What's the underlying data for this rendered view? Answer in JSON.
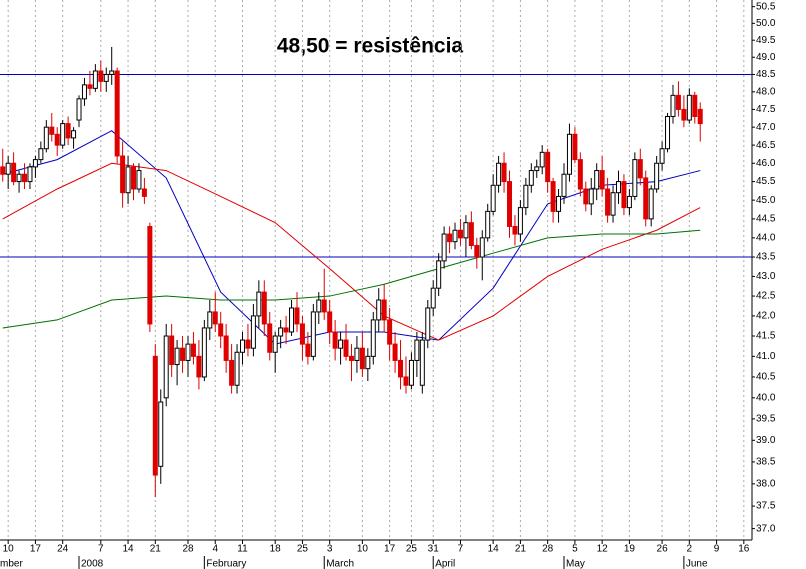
{
  "chart_data": {
    "type": "candlestick",
    "annotation": "48,50 = resistência",
    "annotation_color": "#e00000",
    "log_scale": true,
    "up_color": "#ffffff",
    "down_color": "#e00000",
    "ylim": [
      36.75,
      50.7
    ],
    "yticks": [
      {
        "value": 37,
        "label": "37.0"
      },
      {
        "value": 37.5,
        "label": "37.5"
      },
      {
        "value": 38,
        "label": "38.0"
      },
      {
        "value": 38.5,
        "label": "38.5"
      },
      {
        "value": 39,
        "label": "39.0"
      },
      {
        "value": 39.5,
        "label": "39.5"
      },
      {
        "value": 40,
        "label": "40.0"
      },
      {
        "value": 40.5,
        "label": "40.5"
      },
      {
        "value": 41,
        "label": "41.0"
      },
      {
        "value": 41.5,
        "label": "41.5"
      },
      {
        "value": 42,
        "label": "42.0"
      },
      {
        "value": 42.5,
        "label": "42.5"
      },
      {
        "value": 43,
        "label": "43.0"
      },
      {
        "value": 43.5,
        "label": "43.5"
      },
      {
        "value": 44,
        "label": "44.0"
      },
      {
        "value": 44.5,
        "label": "44.5"
      },
      {
        "value": 45,
        "label": "45.0"
      },
      {
        "value": 45.5,
        "label": "45.5"
      },
      {
        "value": 46,
        "label": "46.0"
      },
      {
        "value": 46.5,
        "label": "46.5"
      },
      {
        "value": 47,
        "label": "47.0"
      },
      {
        "value": 47.5,
        "label": "47.5"
      },
      {
        "value": 48,
        "label": "48.0"
      },
      {
        "value": 48.5,
        "label": "48.5"
      },
      {
        "value": 49,
        "label": "49.0"
      },
      {
        "value": 49.5,
        "label": "49.5"
      },
      {
        "value": 50,
        "label": "50.0"
      },
      {
        "value": 50.5,
        "label": "50.5"
      }
    ],
    "xlim": [
      -0.5,
      137.5
    ],
    "xticks": [
      {
        "value": 1,
        "label": "10"
      },
      {
        "value": 6,
        "label": "17"
      },
      {
        "value": 11,
        "label": "24"
      },
      {
        "value": 18,
        "label": "7"
      },
      {
        "value": 23,
        "label": "14"
      },
      {
        "value": 28,
        "label": "21"
      },
      {
        "value": 34,
        "label": "28"
      },
      {
        "value": 39,
        "label": "4"
      },
      {
        "value": 44,
        "label": "11"
      },
      {
        "value": 50,
        "label": "18"
      },
      {
        "value": 55,
        "label": "25"
      },
      {
        "value": 60,
        "label": "3"
      },
      {
        "value": 66,
        "label": "10"
      },
      {
        "value": 71,
        "label": "17"
      },
      {
        "value": 75,
        "label": "25"
      },
      {
        "value": 79,
        "label": "31"
      },
      {
        "value": 84,
        "label": "7"
      },
      {
        "value": 90,
        "label": "14"
      },
      {
        "value": 95,
        "label": "21"
      },
      {
        "value": 100,
        "label": "28"
      },
      {
        "value": 105,
        "label": "5"
      },
      {
        "value": 110,
        "label": "12"
      },
      {
        "value": 115,
        "label": "19"
      },
      {
        "value": 121,
        "label": "26"
      },
      {
        "value": 126,
        "label": "2"
      },
      {
        "value": 131,
        "label": "9"
      },
      {
        "value": 136,
        "label": "16"
      }
    ],
    "month_labels": [
      {
        "value": -1,
        "label": "mber"
      },
      {
        "value": 14,
        "label": "2008"
      },
      {
        "value": 37,
        "label": "February"
      },
      {
        "value": 59,
        "label": "March"
      },
      {
        "value": 79,
        "label": "April"
      },
      {
        "value": 103,
        "label": "May"
      },
      {
        "value": 125,
        "label": "June"
      }
    ],
    "hlines": [
      48.5,
      43.5
    ],
    "hline_color": "#0000c0",
    "ohlc": [
      [
        45.9,
        46.4,
        45.5,
        45.7
      ],
      [
        45.7,
        46.2,
        45.3,
        46.0
      ],
      [
        46.0,
        46.3,
        45.4,
        45.5
      ],
      [
        45.5,
        45.8,
        45.2,
        45.7
      ],
      [
        45.7,
        46.0,
        45.3,
        45.5
      ],
      [
        45.5,
        46.0,
        45.3,
        45.9
      ],
      [
        45.9,
        46.2,
        45.6,
        46.1
      ],
      [
        46.1,
        46.6,
        46.0,
        46.4
      ],
      [
        46.4,
        47.2,
        46.3,
        47.0
      ],
      [
        47.0,
        47.4,
        46.6,
        46.8
      ],
      [
        46.8,
        47.0,
        46.2,
        46.5
      ],
      [
        46.5,
        47.2,
        46.4,
        47.1
      ],
      [
        47.1,
        47.3,
        46.5,
        46.7
      ],
      [
        46.7,
        47.0,
        46.4,
        46.9
      ],
      [
        47.2,
        47.9,
        47.0,
        47.8
      ],
      [
        47.8,
        48.4,
        47.6,
        48.2
      ],
      [
        48.2,
        48.6,
        47.9,
        48.1
      ],
      [
        48.1,
        48.8,
        48.0,
        48.6
      ],
      [
        48.6,
        48.9,
        48.0,
        48.3
      ],
      [
        48.3,
        48.7,
        48.0,
        48.5
      ],
      [
        48.5,
        49.3,
        48.2,
        48.6
      ],
      [
        48.6,
        48.7,
        46.0,
        46.2
      ],
      [
        46.2,
        46.6,
        44.8,
        45.2
      ],
      [
        45.2,
        46.2,
        44.9,
        45.9
      ],
      [
        45.9,
        46.0,
        45.0,
        45.3
      ],
      [
        45.3,
        46.0,
        45.2,
        45.8
      ],
      [
        45.3,
        45.6,
        44.9,
        45.1
      ],
      [
        44.3,
        44.4,
        41.6,
        41.8
      ],
      [
        41.0,
        41.3,
        37.7,
        38.2
      ],
      [
        38.4,
        40.2,
        38.0,
        39.9
      ],
      [
        40.0,
        41.8,
        39.8,
        41.5
      ],
      [
        41.5,
        41.8,
        40.5,
        40.8
      ],
      [
        40.8,
        41.4,
        40.3,
        41.2
      ],
      [
        41.2,
        41.5,
        40.6,
        40.9
      ],
      [
        40.9,
        41.5,
        40.5,
        41.3
      ],
      [
        41.3,
        41.6,
        40.8,
        41.0
      ],
      [
        41.0,
        41.4,
        40.2,
        40.5
      ],
      [
        40.5,
        41.9,
        40.4,
        41.7
      ],
      [
        41.7,
        42.4,
        41.4,
        42.1
      ],
      [
        42.1,
        42.6,
        41.6,
        41.8
      ],
      [
        41.8,
        42.1,
        41.2,
        41.5
      ],
      [
        41.5,
        41.8,
        40.6,
        40.9
      ],
      [
        40.9,
        41.3,
        40.1,
        40.3
      ],
      [
        40.3,
        41.3,
        40.1,
        41.1
      ],
      [
        41.1,
        41.6,
        40.8,
        41.4
      ],
      [
        41.4,
        41.8,
        41.0,
        41.2
      ],
      [
        41.2,
        42.3,
        41.0,
        42.0
      ],
      [
        42.0,
        42.9,
        41.7,
        42.6
      ],
      [
        42.6,
        42.9,
        41.5,
        41.8
      ],
      [
        41.8,
        42.1,
        40.9,
        41.1
      ],
      [
        41.1,
        41.6,
        40.6,
        41.5
      ],
      [
        41.5,
        41.9,
        41.2,
        41.7
      ],
      [
        41.7,
        42.0,
        41.3,
        41.6
      ],
      [
        41.6,
        42.4,
        41.5,
        42.2
      ],
      [
        42.2,
        42.6,
        41.6,
        41.8
      ],
      [
        41.8,
        42.0,
        40.9,
        41.3
      ],
      [
        41.3,
        41.6,
        40.8,
        41.0
      ],
      [
        41.0,
        42.3,
        40.9,
        42.1
      ],
      [
        42.1,
        42.6,
        41.8,
        42.4
      ],
      [
        42.4,
        43.2,
        41.9,
        42.1
      ],
      [
        42.1,
        42.4,
        41.3,
        41.6
      ],
      [
        41.6,
        41.9,
        40.9,
        41.2
      ],
      [
        41.2,
        41.6,
        40.8,
        41.4
      ],
      [
        41.4,
        41.8,
        40.9,
        41.0
      ],
      [
        41.0,
        41.3,
        40.4,
        40.9
      ],
      [
        40.9,
        41.5,
        40.6,
        41.2
      ],
      [
        41.2,
        41.6,
        40.5,
        40.7
      ],
      [
        40.7,
        41.2,
        40.4,
        41.0
      ],
      [
        41.0,
        42.1,
        40.8,
        41.9
      ],
      [
        41.9,
        42.7,
        41.6,
        42.4
      ],
      [
        42.4,
        42.8,
        41.6,
        41.9
      ],
      [
        41.9,
        42.2,
        40.9,
        41.3
      ],
      [
        41.3,
        41.6,
        40.6,
        40.9
      ],
      [
        40.9,
        41.4,
        40.2,
        40.5
      ],
      [
        40.5,
        41.0,
        40.1,
        40.3
      ],
      [
        40.3,
        41.1,
        40.2,
        40.9
      ],
      [
        40.9,
        41.6,
        40.5,
        41.4
      ],
      [
        40.3,
        41.6,
        40.1,
        41.4
      ],
      [
        41.4,
        42.4,
        41.2,
        42.2
      ],
      [
        42.2,
        42.9,
        42.0,
        42.7
      ],
      [
        42.7,
        43.6,
        42.5,
        43.4
      ],
      [
        43.4,
        44.3,
        43.2,
        44.1
      ],
      [
        44.1,
        44.3,
        43.6,
        43.9
      ],
      [
        43.9,
        44.4,
        43.7,
        44.2
      ],
      [
        44.2,
        44.5,
        43.8,
        44.0
      ],
      [
        44.0,
        44.6,
        43.5,
        44.4
      ],
      [
        44.4,
        44.7,
        43.7,
        43.8
      ],
      [
        43.8,
        44.0,
        43.2,
        43.5
      ],
      [
        43.5,
        44.2,
        42.9,
        44.0
      ],
      [
        44.0,
        44.9,
        43.9,
        44.7
      ],
      [
        44.7,
        45.7,
        44.6,
        45.4
      ],
      [
        45.4,
        46.2,
        45.2,
        46.0
      ],
      [
        46.0,
        46.3,
        45.2,
        45.5
      ],
      [
        45.5,
        45.8,
        44.0,
        44.3
      ],
      [
        44.3,
        44.6,
        43.8,
        44.1
      ],
      [
        44.1,
        45.0,
        43.9,
        44.8
      ],
      [
        44.8,
        45.6,
        44.6,
        45.4
      ],
      [
        45.4,
        46.0,
        45.2,
        45.8
      ],
      [
        45.8,
        46.1,
        45.6,
        45.9
      ],
      [
        45.9,
        46.5,
        45.7,
        46.3
      ],
      [
        46.3,
        46.4,
        45.2,
        45.5
      ],
      [
        45.5,
        45.6,
        44.4,
        44.7
      ],
      [
        44.7,
        45.3,
        44.4,
        45.1
      ],
      [
        45.1,
        46.0,
        44.9,
        45.7
      ],
      [
        45.7,
        47.1,
        45.5,
        46.8
      ],
      [
        46.8,
        47.0,
        46.0,
        46.1
      ],
      [
        46.1,
        46.3,
        45.1,
        45.3
      ],
      [
        45.3,
        45.5,
        44.7,
        44.9
      ],
      [
        44.9,
        45.6,
        44.6,
        45.3
      ],
      [
        45.3,
        46.0,
        45.0,
        45.8
      ],
      [
        45.8,
        46.2,
        45.1,
        45.3
      ],
      [
        45.3,
        45.6,
        44.4,
        44.6
      ],
      [
        44.6,
        45.4,
        44.4,
        45.2
      ],
      [
        45.2,
        45.8,
        44.9,
        45.5
      ],
      [
        45.5,
        45.7,
        44.6,
        44.8
      ],
      [
        44.8,
        45.3,
        44.6,
        45.1
      ],
      [
        45.1,
        46.3,
        45.0,
        46.1
      ],
      [
        46.1,
        46.4,
        45.4,
        45.6
      ],
      [
        45.6,
        45.8,
        44.3,
        44.5
      ],
      [
        44.5,
        45.4,
        44.3,
        45.3
      ],
      [
        45.3,
        46.2,
        45.2,
        46.0
      ],
      [
        46.0,
        46.6,
        45.8,
        46.4
      ],
      [
        46.4,
        47.4,
        46.3,
        47.3
      ],
      [
        47.3,
        48.2,
        47.1,
        47.9
      ],
      [
        47.9,
        48.3,
        47.3,
        47.5
      ],
      [
        47.5,
        47.9,
        47.0,
        47.2
      ],
      [
        47.2,
        48.1,
        47.1,
        47.9
      ],
      [
        47.9,
        48.0,
        47.1,
        47.3
      ],
      [
        47.5,
        47.7,
        46.6,
        47.1
      ]
    ],
    "series": [
      {
        "color": "#0000c0",
        "x": [
          0,
          10,
          20,
          30,
          40,
          50,
          60,
          70,
          80,
          90,
          100,
          110,
          120,
          128
        ],
        "values": [
          45.7,
          46.1,
          46.9,
          45.6,
          42.6,
          41.3,
          41.6,
          41.6,
          41.4,
          42.7,
          44.9,
          45.4,
          45.5,
          45.8
        ]
      },
      {
        "color": "#e00000",
        "x": [
          0,
          10,
          20,
          30,
          40,
          50,
          60,
          70,
          80,
          90,
          100,
          110,
          120,
          128
        ],
        "values": [
          44.5,
          45.3,
          46.0,
          45.8,
          45.1,
          44.4,
          43.2,
          42.0,
          41.4,
          42.0,
          43.0,
          43.7,
          44.2,
          44.8
        ]
      },
      {
        "color": "#007000",
        "x": [
          0,
          10,
          20,
          30,
          40,
          50,
          60,
          70,
          80,
          90,
          100,
          110,
          120,
          128
        ],
        "values": [
          41.7,
          41.9,
          42.4,
          42.5,
          42.4,
          42.4,
          42.5,
          42.8,
          43.2,
          43.6,
          44.0,
          44.1,
          44.1,
          44.2
        ]
      }
    ]
  }
}
